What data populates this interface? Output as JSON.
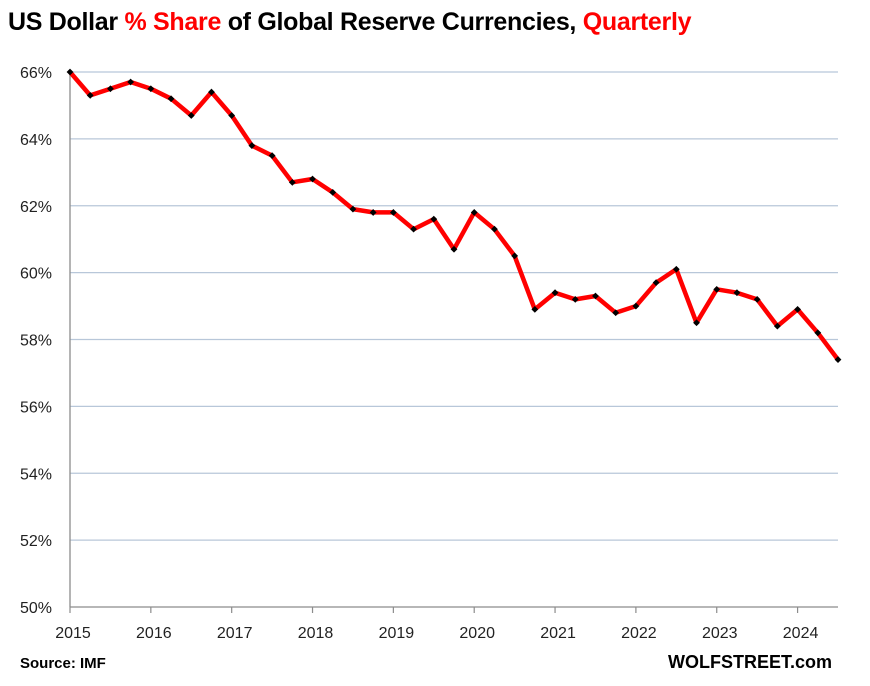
{
  "chart_data": {
    "type": "line",
    "title_parts": [
      {
        "text": "US Dollar ",
        "color": "#000000"
      },
      {
        "text": "% Share",
        "color": "#ff0000"
      },
      {
        "text": " of Global Reserve Currencies, ",
        "color": "#000000"
      },
      {
        "text": "Quarterly",
        "color": "#ff0000"
      }
    ],
    "xlabel": "",
    "ylabel": "",
    "ylim": [
      50,
      66
    ],
    "y_ticks": [
      50,
      52,
      54,
      56,
      58,
      60,
      62,
      64,
      66
    ],
    "y_tick_labels": [
      "50%",
      "52%",
      "54%",
      "56%",
      "58%",
      "60%",
      "62%",
      "64%",
      "66%"
    ],
    "x_range": [
      0,
      38
    ],
    "x_ticks": [
      0,
      4,
      8,
      12,
      16,
      20,
      24,
      28,
      32,
      36
    ],
    "x_tick_labels": [
      "2015",
      "2016",
      "2017",
      "2018",
      "2019",
      "2020",
      "2021",
      "2022",
      "2023",
      "2024"
    ],
    "grid": true,
    "series": [
      {
        "name": "USD share of global reserves",
        "color": "#ff0000",
        "marker_color": "#000000",
        "x": [
          0,
          1,
          2,
          3,
          4,
          5,
          6,
          7,
          8,
          9,
          10,
          11,
          12,
          13,
          14,
          15,
          16,
          17,
          18,
          19,
          20,
          21,
          22,
          23,
          24,
          25,
          26,
          27,
          28,
          29,
          30,
          31,
          32,
          33,
          34,
          35,
          36,
          37,
          38
        ],
        "values": [
          66.0,
          65.3,
          65.5,
          65.7,
          65.5,
          65.2,
          64.7,
          65.4,
          64.7,
          63.8,
          63.5,
          62.7,
          62.8,
          62.4,
          61.9,
          61.8,
          61.8,
          61.3,
          61.6,
          60.7,
          61.8,
          61.3,
          60.5,
          58.9,
          59.4,
          59.2,
          59.3,
          58.8,
          59.0,
          59.7,
          60.1,
          58.5,
          59.5,
          59.4,
          59.2,
          58.4,
          58.9,
          58.2,
          57.4
        ]
      }
    ]
  },
  "footer": {
    "source": "Source: IMF",
    "brand": "WOLFSTREET.com"
  }
}
